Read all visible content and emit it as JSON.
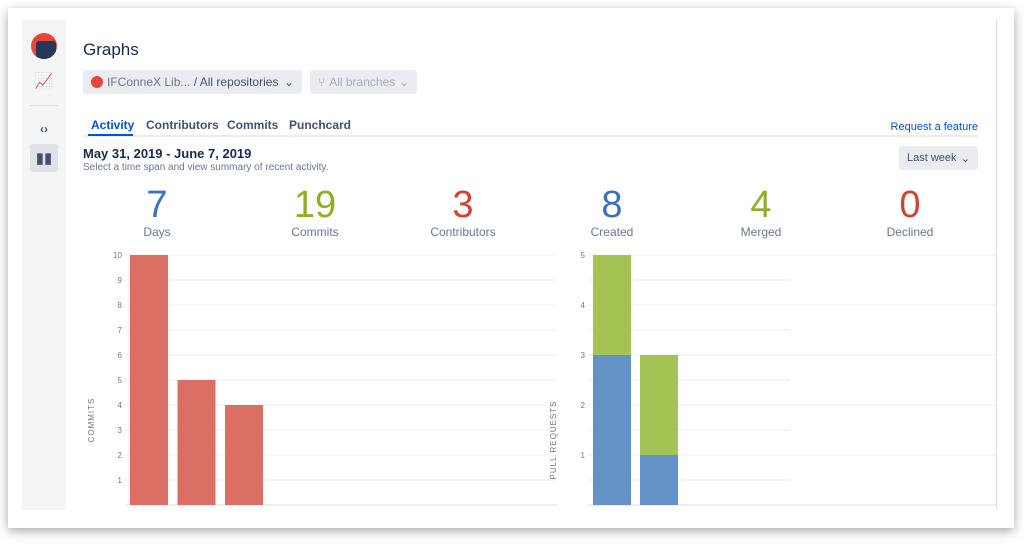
{
  "header": {
    "title": "Graphs",
    "repo_label": "IFConneX Lib...",
    "repo_scope": "/ All repositories",
    "branch_label": "All branches"
  },
  "tabs": [
    {
      "label": "Activity",
      "active": true
    },
    {
      "label": "Contributors"
    },
    {
      "label": "Commits"
    },
    {
      "label": "Punchcard"
    }
  ],
  "request_feature": "Request a feature",
  "date_range": "May 31, 2019 - June 7, 2019",
  "date_hint": "Select a time span and view summary of recent activity.",
  "period_select": "Last week",
  "colors": {
    "blue": "#3b73b9",
    "green": "#8eb021",
    "red": "#d04437"
  },
  "stats": [
    {
      "value": "7",
      "label": "Days",
      "color": "#3b73b9"
    },
    {
      "value": "19",
      "label": "Commits",
      "color": "#8eb021"
    },
    {
      "value": "3",
      "label": "Contributors",
      "color": "#d04437"
    },
    {
      "value": "8",
      "label": "Created",
      "color": "#3b73b9"
    },
    {
      "value": "4",
      "label": "Merged",
      "color": "#8eb021"
    },
    {
      "value": "0",
      "label": "Declined",
      "color": "#d04437"
    }
  ],
  "chart_data": [
    {
      "type": "bar",
      "ylabel": "COMMITS",
      "ylim": [
        0,
        10
      ],
      "yticks": [
        1,
        2,
        3,
        4,
        5,
        6,
        7,
        8,
        9,
        10
      ],
      "values": [
        10,
        5,
        4
      ],
      "color": "#dc6f63"
    },
    {
      "type": "bar",
      "stacked": true,
      "ylabel": "PULL REQUESTS",
      "ylim": [
        0,
        5
      ],
      "yticks": [
        1,
        2,
        3,
        4,
        5
      ],
      "series": [
        {
          "values": [
            3,
            1
          ],
          "color": "#6491c6"
        },
        {
          "values": [
            2,
            2
          ],
          "color": "#a4c353"
        }
      ]
    }
  ]
}
